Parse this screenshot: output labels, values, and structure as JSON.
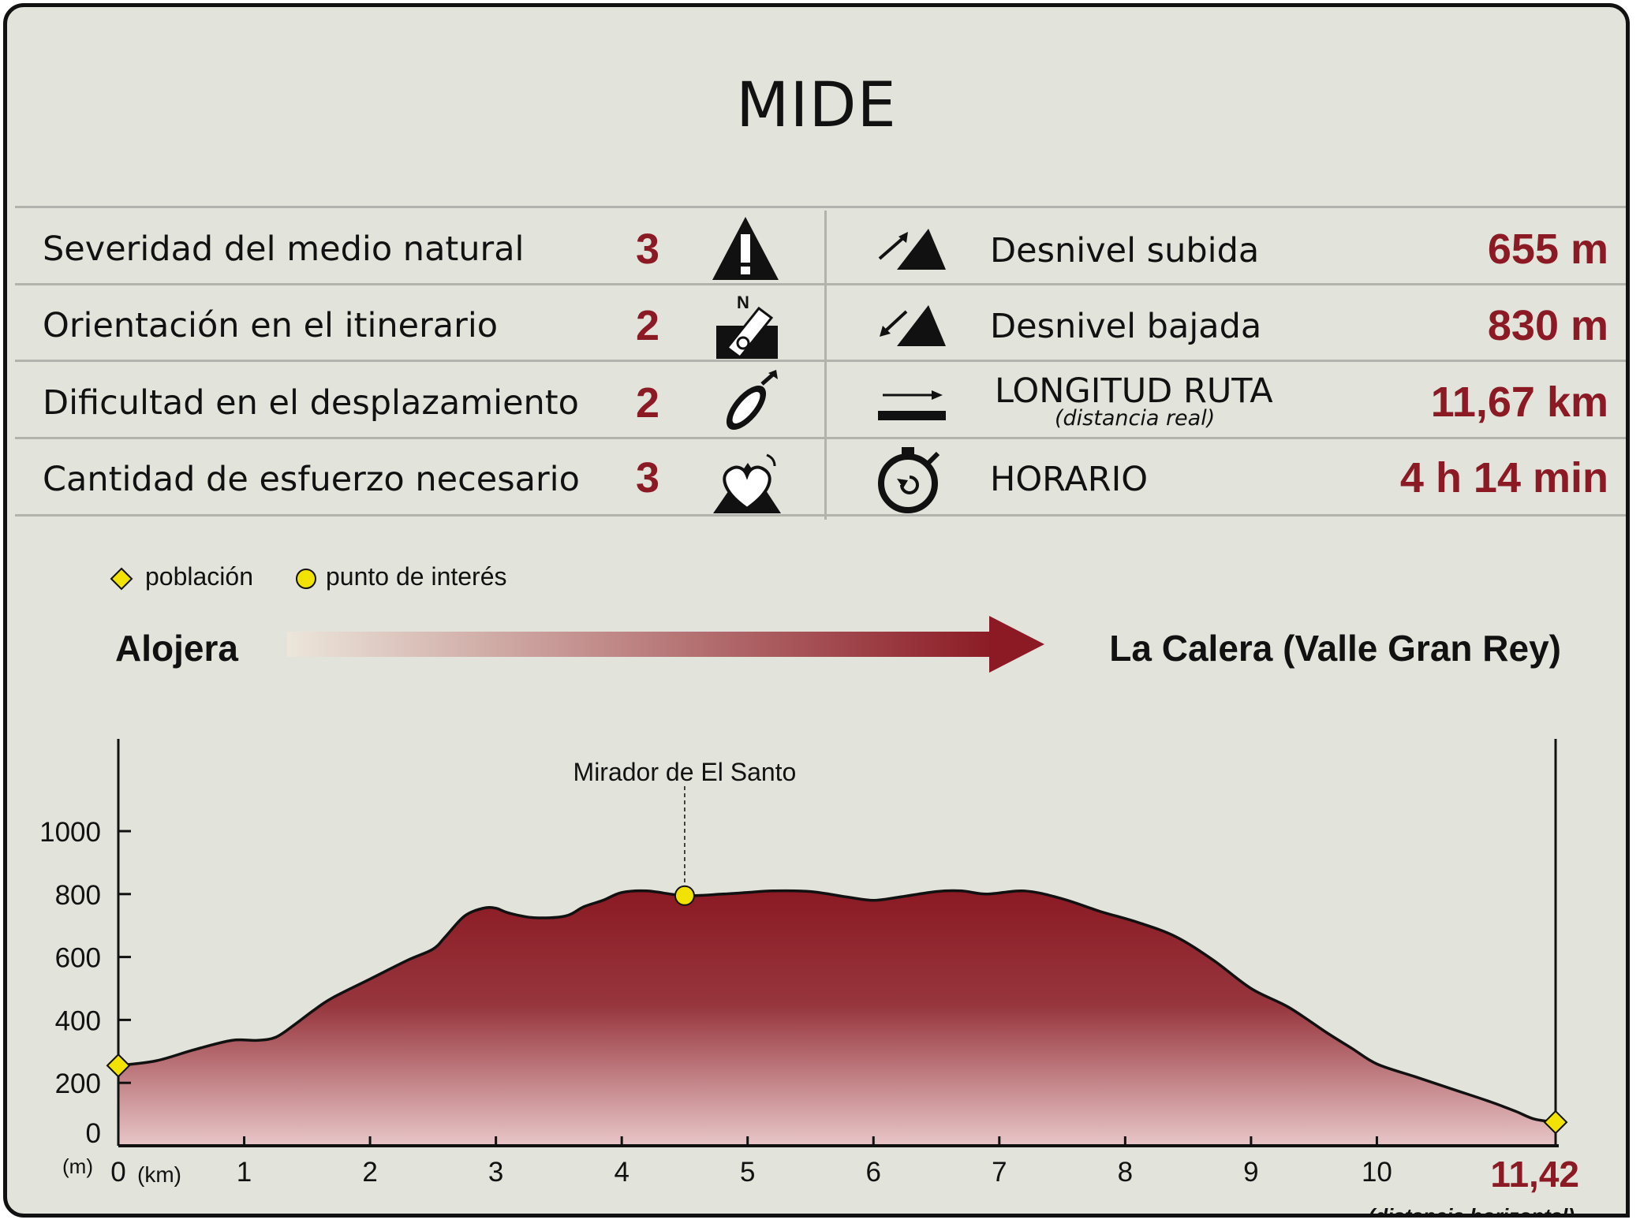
{
  "title": "MIDE",
  "mide_rows": [
    {
      "label": "Severidad del medio natural",
      "score": "3",
      "icon": "warning-triangle-icon"
    },
    {
      "label": "Orientación en el itinerario",
      "score": "2",
      "icon": "compass-orientation-icon"
    },
    {
      "label": "Dificultad en el desplazamiento",
      "score": "2",
      "icon": "footprint-icon"
    },
    {
      "label": "Cantidad de esfuerzo necesario",
      "score": "3",
      "icon": "heart-effort-icon"
    }
  ],
  "route_stats": [
    {
      "label": "Desnivel subida",
      "value": "655 m",
      "icon": "ascent-icon"
    },
    {
      "label": "Desnivel bajada",
      "value": "830 m",
      "icon": "descent-icon"
    },
    {
      "label": "LONGITUD RUTA",
      "sublabel": "(distancia real)",
      "value": "11,67 km",
      "icon": "length-arrow-icon"
    },
    {
      "label": "HORARIO",
      "value": "4 h 14 min",
      "icon": "stopwatch-icon"
    }
  ],
  "legend": {
    "town": "población",
    "poi": "punto de interés"
  },
  "route": {
    "start": "Alojera",
    "end": "La Calera (Valle Gran Rey)"
  },
  "colors": {
    "accent": "#8b1a24",
    "background": "#e2e3da",
    "marker": "#f2e200"
  },
  "chart_data": {
    "type": "area",
    "x_unit": "(km)",
    "y_unit": "(m)",
    "xlim": [
      0,
      11.42
    ],
    "ylim": [
      0,
      1000
    ],
    "y_ticks": [
      0,
      200,
      400,
      600,
      800,
      1000
    ],
    "x_ticks": [
      0,
      1,
      2,
      3,
      4,
      5,
      6,
      7,
      8,
      9,
      10
    ],
    "x_end_label": "11,42",
    "x_end_sublabel": "(distancia horizontal)",
    "series": [
      {
        "x": [
          0,
          0.3,
          0.6,
          0.9,
          1.1,
          1.25,
          1.4,
          1.55,
          1.7,
          2.0,
          2.3,
          2.5,
          2.6,
          2.75,
          2.9,
          3.0,
          3.1,
          3.3,
          3.55,
          3.7,
          3.85,
          4.0,
          4.2,
          4.5,
          4.8,
          5.0,
          5.2,
          5.5,
          5.8,
          6.0,
          6.2,
          6.5,
          6.7,
          6.9,
          7.2,
          7.5,
          7.8,
          8.1,
          8.4,
          8.7,
          9.0,
          9.3,
          9.6,
          9.8,
          10.0,
          10.3,
          10.6,
          10.9,
          11.1,
          11.25,
          11.42
        ],
        "y": [
          255,
          270,
          305,
          335,
          335,
          345,
          385,
          430,
          470,
          530,
          590,
          625,
          665,
          730,
          755,
          755,
          740,
          725,
          730,
          760,
          780,
          805,
          810,
          795,
          800,
          805,
          810,
          808,
          790,
          780,
          790,
          808,
          810,
          800,
          810,
          785,
          745,
          710,
          665,
          590,
          500,
          440,
          360,
          310,
          260,
          220,
          180,
          140,
          110,
          85,
          75
        ]
      }
    ],
    "markers": [
      {
        "type": "población",
        "x": 0,
        "y": 255
      },
      {
        "type": "población",
        "x": 11.42,
        "y": 75
      },
      {
        "type": "punto de interés",
        "x": 4.5,
        "y": 795,
        "label": "Mirador de El Santo"
      }
    ]
  }
}
